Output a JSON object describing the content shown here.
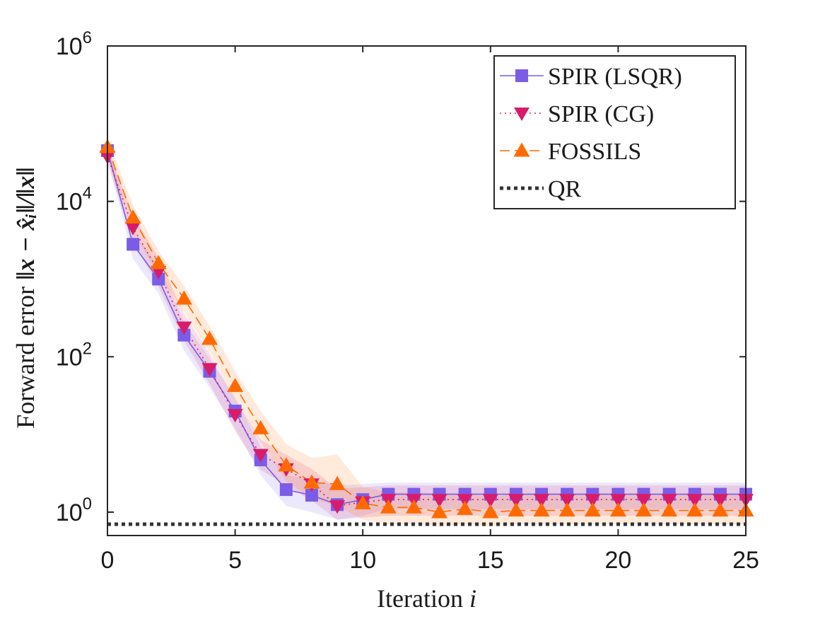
{
  "chart_data": {
    "type": "line",
    "title": "",
    "xlabel": "Iteration i",
    "xlabel_text": "Iteration",
    "xlabel_var": "i",
    "ylabel": "Forward error ||x − x̂_i|| / ||x||",
    "ylabel_text": "Forward error",
    "ylabel_math": "‖x − x̂ᵢ‖/‖x‖",
    "xlim": [
      0,
      25
    ],
    "ylim": [
      0.5,
      1000000
    ],
    "yscale": "log",
    "x_ticks": [
      "0",
      "5",
      "10",
      "15",
      "20",
      "25"
    ],
    "y_ticks": [
      {
        "base": "10",
        "exp": "0"
      },
      {
        "base": "10",
        "exp": "2"
      },
      {
        "base": "10",
        "exp": "4"
      },
      {
        "base": "10",
        "exp": "6"
      }
    ],
    "legend_position": "top-right",
    "x": [
      0,
      1,
      2,
      3,
      4,
      5,
      6,
      7,
      8,
      9,
      10,
      11,
      12,
      13,
      14,
      15,
      16,
      17,
      18,
      19,
      20,
      21,
      22,
      23,
      24,
      25
    ],
    "series": [
      {
        "name": "SPIR (LSQR)",
        "color": "#7b5ce6",
        "marker": "square",
        "linestyle": "solid",
        "values": [
          45000,
          2800,
          1000,
          190,
          65,
          20,
          4.7,
          1.95,
          1.65,
          1.25,
          1.45,
          1.7,
          1.7,
          1.7,
          1.7,
          1.7,
          1.7,
          1.7,
          1.7,
          1.7,
          1.7,
          1.7,
          1.7,
          1.7,
          1.7,
          1.7
        ],
        "band_lower": [
          38000,
          1800,
          650,
          120,
          40,
          12,
          3.0,
          1.2,
          1.0,
          0.8,
          0.9,
          1.1,
          1.1,
          1.1,
          1.1,
          1.1,
          1.1,
          1.1,
          1.1,
          1.1,
          1.1,
          1.1,
          1.1,
          1.1,
          1.1,
          1.1
        ],
        "band_upper": [
          55000,
          4000,
          1500,
          280,
          95,
          30,
          7.0,
          3.0,
          2.6,
          2.2,
          2.3,
          2.4,
          2.4,
          2.4,
          2.4,
          2.4,
          2.4,
          2.4,
          2.4,
          2.4,
          2.4,
          2.4,
          2.4,
          2.4,
          2.4,
          2.4
        ]
      },
      {
        "name": "SPIR (CG)",
        "color": "#d81b6a",
        "marker": "triangle-down",
        "linestyle": "dotted",
        "values": [
          38000,
          4600,
          1250,
          240,
          70,
          18,
          5.5,
          3.6,
          2.3,
          1.2,
          1.35,
          1.45,
          1.45,
          1.45,
          1.45,
          1.45,
          1.45,
          1.45,
          1.45,
          1.45,
          1.45,
          1.45,
          1.45,
          1.45,
          1.45,
          1.45
        ],
        "band_lower": [
          30000,
          3000,
          800,
          160,
          45,
          11,
          3.5,
          2.2,
          1.4,
          0.8,
          0.85,
          0.9,
          0.9,
          0.9,
          0.9,
          0.9,
          0.9,
          0.9,
          0.9,
          0.9,
          0.9,
          0.9,
          0.9,
          0.9,
          0.9,
          0.9
        ],
        "band_upper": [
          48000,
          6500,
          1900,
          360,
          110,
          28,
          8.5,
          5.5,
          3.6,
          2.0,
          2.1,
          2.2,
          2.2,
          2.2,
          2.2,
          2.2,
          2.2,
          2.2,
          2.2,
          2.2,
          2.2,
          2.2,
          2.2,
          2.2,
          2.2,
          2.2
        ]
      },
      {
        "name": "FOSSILS",
        "color": "#ff6a00",
        "marker": "triangle-up",
        "linestyle": "dashed",
        "values": [
          50000,
          6200,
          1600,
          560,
          170,
          42,
          12,
          4.0,
          2.4,
          2.3,
          1.3,
          1.15,
          1.15,
          1.0,
          1.1,
          1.0,
          1.05,
          1.05,
          1.05,
          1.05,
          1.05,
          1.05,
          1.05,
          1.05,
          1.05,
          1.05
        ],
        "band_lower": [
          40000,
          4200,
          1100,
          380,
          115,
          28,
          8,
          2.5,
          1.5,
          1.2,
          0.8,
          0.7,
          0.7,
          0.65,
          0.7,
          0.65,
          0.7,
          0.7,
          0.7,
          0.7,
          0.7,
          0.7,
          0.7,
          0.7,
          0.7,
          0.7
        ],
        "band_upper": [
          65000,
          9000,
          2300,
          820,
          250,
          65,
          20,
          7.5,
          5.0,
          5.5,
          2.1,
          1.8,
          1.8,
          1.7,
          1.7,
          1.6,
          1.7,
          1.7,
          1.7,
          1.7,
          1.7,
          1.7,
          1.7,
          1.7,
          1.7,
          1.7
        ]
      },
      {
        "name": "QR",
        "color": "#333333",
        "marker": "none",
        "linestyle": "dotted-thick",
        "values": [
          0.7,
          0.7,
          0.7,
          0.7,
          0.7,
          0.7,
          0.7,
          0.7,
          0.7,
          0.7,
          0.7,
          0.7,
          0.7,
          0.7,
          0.7,
          0.7,
          0.7,
          0.7,
          0.7,
          0.7,
          0.7,
          0.7,
          0.7,
          0.7,
          0.7,
          0.7
        ]
      }
    ]
  }
}
